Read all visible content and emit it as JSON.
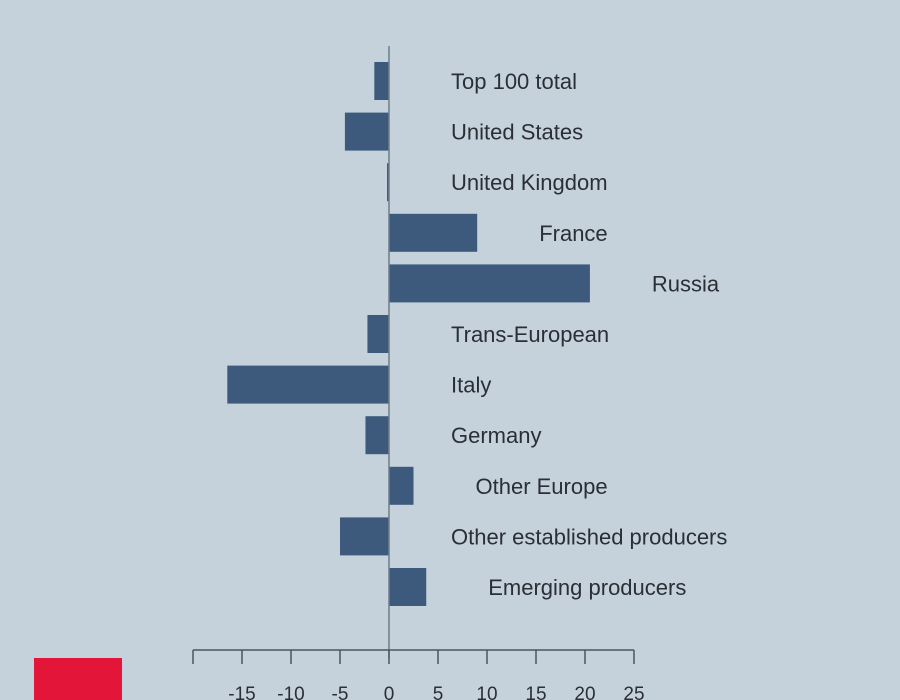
{
  "chart_data": {
    "type": "bar",
    "orientation": "horizontal",
    "categories": [
      "Top 100 total",
      "United States",
      "United Kingdom",
      "France",
      "Russia",
      "Trans-European",
      "Italy",
      "Germany",
      "Other Europe",
      "Other established producers",
      "Emerging producers"
    ],
    "values": [
      -1.5,
      -4.5,
      -0.2,
      9,
      20.5,
      -2.2,
      -16.5,
      -2.4,
      2.5,
      -5,
      3.8
    ],
    "xlim": [
      -20,
      25
    ],
    "xticks": [
      -15,
      -10,
      -5,
      0,
      5,
      10,
      15,
      20,
      25
    ],
    "grid": false,
    "colors": {
      "bar": "#3d5a7d",
      "background": "#c5d2dc",
      "brand": "#e3163a"
    }
  }
}
